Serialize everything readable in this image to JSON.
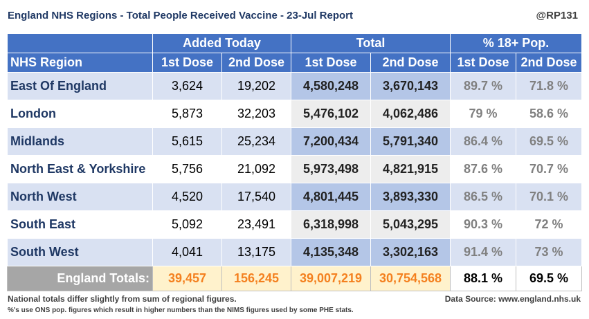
{
  "title": "England NHS Regions - Total People Received Vaccine - 23-Jul Report",
  "handle": "@RP131",
  "headers": {
    "added_today": "Added Today",
    "total": "Total",
    "pct_pop": "% 18+ Pop.",
    "region": "NHS Region",
    "dose1": "1st Dose",
    "dose2": "2nd Dose"
  },
  "rows": [
    {
      "region": "East Of England",
      "added1": "3,624",
      "added2": "19,202",
      "total1": "4,580,248",
      "total2": "3,670,143",
      "pct1": "89.7 %",
      "pct2": "71.8 %"
    },
    {
      "region": "London",
      "added1": "5,873",
      "added2": "32,203",
      "total1": "5,476,102",
      "total2": "4,062,486",
      "pct1": "79 %",
      "pct2": "58.6 %"
    },
    {
      "region": "Midlands",
      "added1": "5,615",
      "added2": "25,234",
      "total1": "7,200,434",
      "total2": "5,791,340",
      "pct1": "86.4 %",
      "pct2": "69.5 %"
    },
    {
      "region": "North East & Yorkshire",
      "added1": "5,756",
      "added2": "21,092",
      "total1": "5,973,498",
      "total2": "4,821,915",
      "pct1": "87.6 %",
      "pct2": "70.7 %"
    },
    {
      "region": "North West",
      "added1": "4,520",
      "added2": "17,540",
      "total1": "4,801,445",
      "total2": "3,893,330",
      "pct1": "86.5 %",
      "pct2": "70.1 %"
    },
    {
      "region": "South East",
      "added1": "5,092",
      "added2": "23,491",
      "total1": "6,318,998",
      "total2": "5,043,295",
      "pct1": "90.3 %",
      "pct2": "72 %"
    },
    {
      "region": "South West",
      "added1": "4,041",
      "added2": "13,175",
      "total1": "4,135,348",
      "total2": "3,302,163",
      "pct1": "91.4 %",
      "pct2": "73 %"
    }
  ],
  "totals": {
    "label": "England Totals:",
    "added1": "39,457",
    "added2": "156,245",
    "total1": "39,007,219",
    "total2": "30,754,568",
    "pct1": "88.1 %",
    "pct2": "69.5 %"
  },
  "footer": {
    "note1": "National totals differ slightly from sum of regional figures.",
    "note2": "%'s use ONS pop. figures which result in higher numbers than the NIMS figures used by some PHE stats.",
    "source": "Data Source: www.england.nhs.uk"
  },
  "colors": {
    "header_blue": "#4472c4",
    "region_text": "#1f3864",
    "band_light": "#d9e1f2",
    "band_total": "#b4c6e7",
    "totals_orange": "#f4801f"
  }
}
